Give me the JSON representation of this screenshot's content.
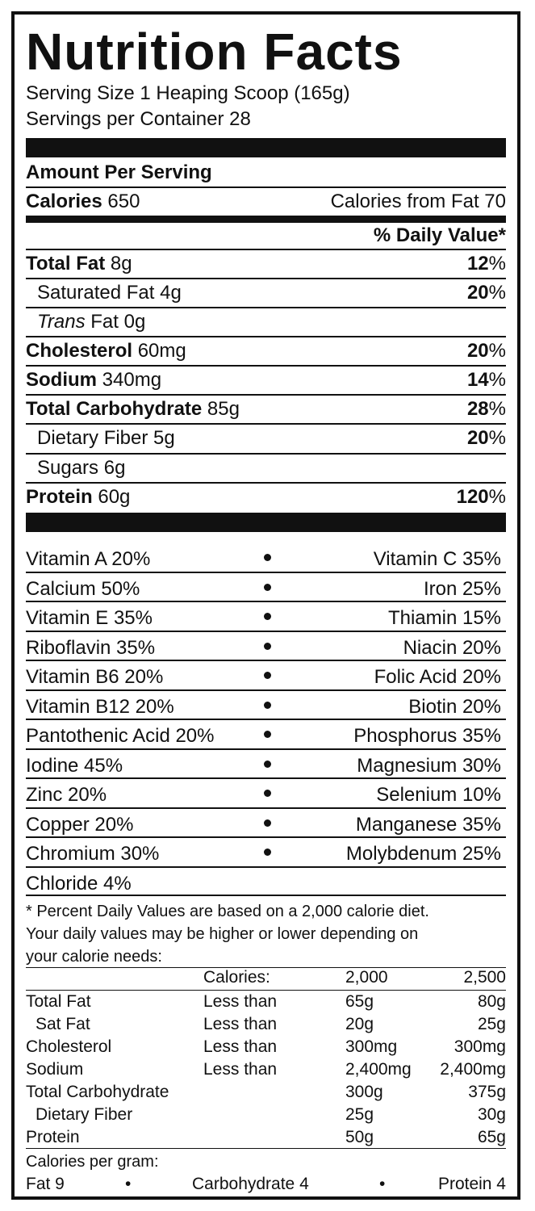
{
  "title": "Nutrition Facts",
  "serving_size": "Serving Size 1 Heaping Scoop (165g)",
  "servings_per_container": "Servings per Container 28",
  "amount_per_serving": "Amount Per Serving",
  "calories": {
    "label": "Calories",
    "value": "650",
    "from_fat": "Calories from Fat 70"
  },
  "daily_value_header": "% Daily Value*",
  "nutrients": [
    {
      "name": "Total Fat",
      "amount": "8g",
      "pct": "12",
      "bold": true
    },
    {
      "name": "Saturated Fat",
      "amount": "4g",
      "pct": "20",
      "bold": false
    },
    {
      "name": "Trans",
      "name_suffix": "Fat",
      "amount": "0g",
      "pct": ""
    },
    {
      "name": "Cholesterol",
      "amount": "60mg",
      "pct": "20",
      "bold": true
    },
    {
      "name": "Sodium",
      "amount": "340mg",
      "pct": "14",
      "bold": true
    },
    {
      "name": "Total Carbohydrate",
      "amount": "85g",
      "pct": "28",
      "bold": true
    },
    {
      "name": "Dietary Fiber",
      "amount": "5g",
      "pct": "20",
      "bold": false
    },
    {
      "name": "Sugars",
      "amount": "6g",
      "pct": "",
      "bold": false
    },
    {
      "name": "Protein",
      "amount": "60g",
      "pct": "120",
      "bold": true
    }
  ],
  "pct_symbol": "%",
  "vitamins": [
    {
      "left": "Vitamin A 20%",
      "right": "Vitamin C 35%"
    },
    {
      "left": "Calcium 50%",
      "right": "Iron 25%"
    },
    {
      "left": "Vitamin E 35%",
      "right": "Thiamin 15%"
    },
    {
      "left": "Riboflavin 35%",
      "right": "Niacin 20%"
    },
    {
      "left": "Vitamin B6 20%",
      "right": "Folic Acid 20%"
    },
    {
      "left": "Vitamin B12 20%",
      "right": "Biotin 20%"
    },
    {
      "left": "Pantothenic Acid 20%",
      "right": "Phosphorus 35%"
    },
    {
      "left": "Iodine 45%",
      "right": "Magnesium 30%"
    },
    {
      "left": "Zinc 20%",
      "right": "Selenium 10%"
    },
    {
      "left": "Copper 20%",
      "right": "Manganese 35%"
    },
    {
      "left": "Chromium 30%",
      "right": "Molybdenum 25%"
    },
    {
      "left": "Chloride 4%",
      "right": ""
    }
  ],
  "footnote": [
    "* Percent Daily Values are based on a 2,000 calorie diet.",
    "Your daily values may be higher or lower depending on",
    "your calorie needs:"
  ],
  "dv_table": {
    "header": [
      "",
      "Calories:",
      "2,000",
      "2,500"
    ],
    "rows": [
      [
        "Total Fat",
        "Less than",
        "65g",
        "80g"
      ],
      [
        " Sat Fat",
        "Less than",
        "20g",
        "25g"
      ],
      [
        "Cholesterol",
        "Less than",
        "300mg",
        "300mg"
      ],
      [
        "Sodium",
        "Less than",
        "2,400mg",
        "2,400mg"
      ],
      [
        "Total Carbohydrate",
        "",
        "300g",
        "375g"
      ],
      [
        " Dietary Fiber",
        "",
        "25g",
        "30g"
      ],
      [
        "Protein",
        "",
        "50g",
        "65g"
      ]
    ]
  },
  "calories_per_gram": {
    "label": "Calories per gram:",
    "fat": "Fat 9",
    "carb": "Carbohydrate 4",
    "protein": "Protein 4",
    "bullet": "•"
  }
}
